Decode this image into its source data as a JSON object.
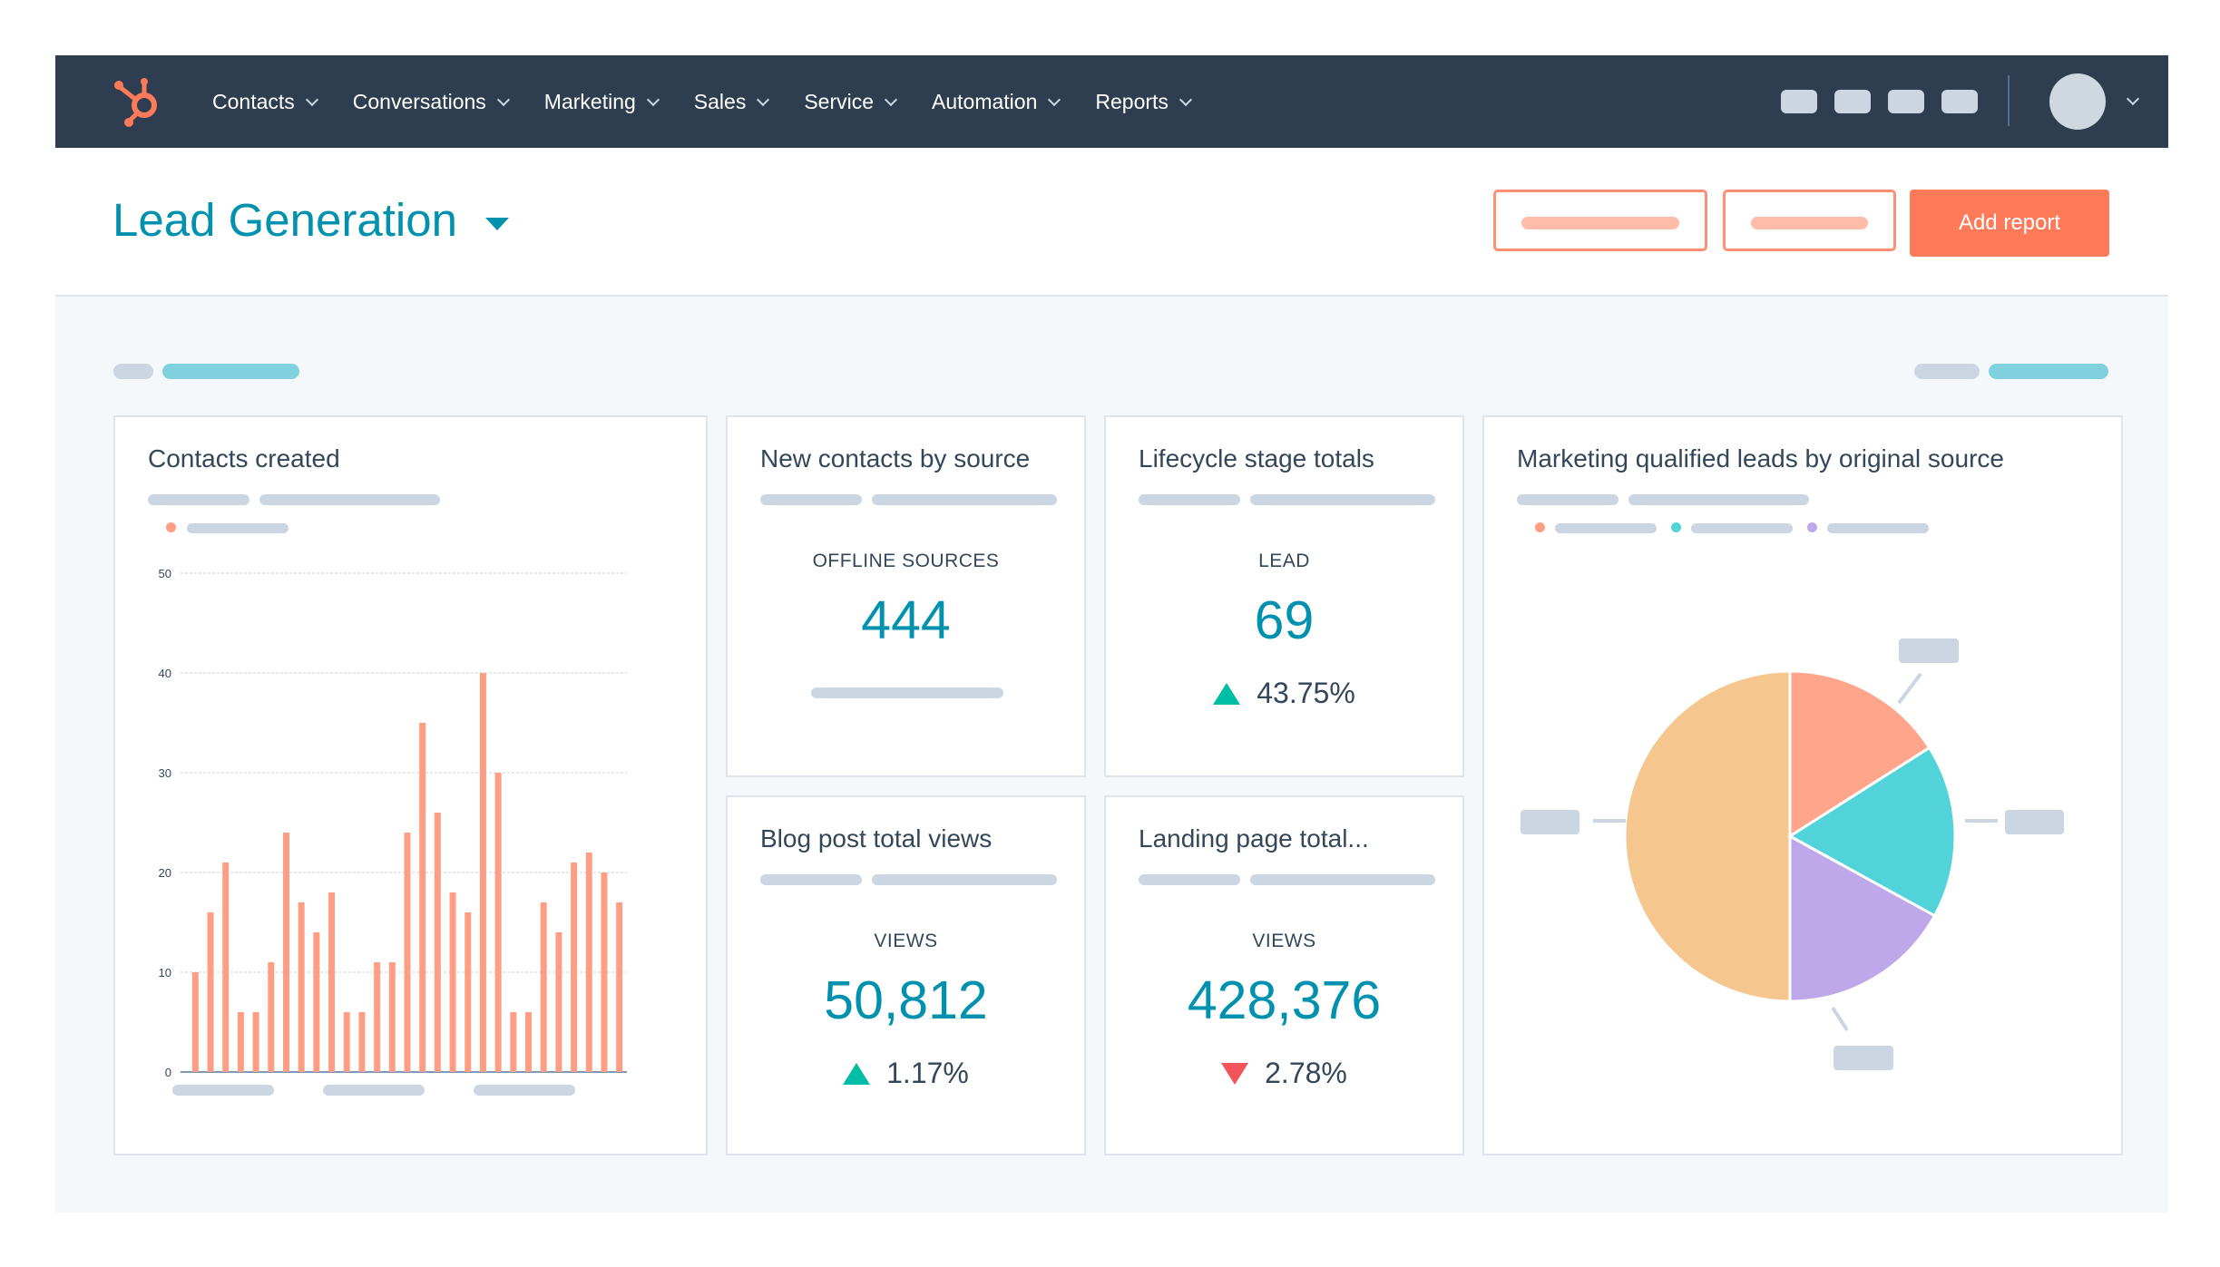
{
  "nav": {
    "menu": [
      {
        "label": "Contacts"
      },
      {
        "label": "Conversations"
      },
      {
        "label": "Marketing"
      },
      {
        "label": "Sales"
      },
      {
        "label": "Service"
      },
      {
        "label": "Automation"
      },
      {
        "label": "Reports"
      }
    ],
    "brand_color": "#ff7a59",
    "icons": [
      "hubspot-sprocket-icon",
      "chevron-down-icon",
      "avatar"
    ]
  },
  "header": {
    "title": "Lead Generation",
    "add_report_label": "Add report",
    "accent_color": "#0091ae"
  },
  "cards": {
    "contacts_created": {
      "title": "Contacts created"
    },
    "new_contacts": {
      "title": "New contacts by source",
      "label": "OFFLINE SOURCES",
      "value": "444"
    },
    "lifecycle": {
      "title": "Lifecycle stage totals",
      "label": "LEAD",
      "value": "69",
      "change": "43.75%",
      "direction": "up"
    },
    "blog": {
      "title": "Blog post total views",
      "label": "VIEWS",
      "value": "50,812",
      "change": "1.17%",
      "direction": "up"
    },
    "landing": {
      "title": "Landing page total...",
      "label": "VIEWS",
      "value": "428,376",
      "change": "2.78%",
      "direction": "down"
    },
    "mql": {
      "title": "Marketing qualified leads by original source"
    }
  },
  "status_colors": {
    "up": "#00bda5",
    "down": "#f2545b"
  },
  "chart_data": [
    {
      "type": "bar",
      "title": "Contacts created",
      "ylim": [
        0,
        50
      ],
      "yticks": [
        "0",
        "10",
        "20",
        "30",
        "40",
        "50"
      ],
      "grid": true,
      "color": "#ff9e85",
      "values": [
        10,
        16,
        21,
        6,
        6,
        11,
        24,
        17,
        14,
        18,
        6,
        6,
        11,
        11,
        24,
        35,
        26,
        18,
        16,
        40,
        30,
        6,
        6,
        17,
        14,
        21,
        22,
        20,
        17
      ]
    },
    {
      "type": "pie",
      "title": "Marketing qualified leads by original source",
      "values": [
        50,
        16,
        17,
        17
      ],
      "colors": [
        "#f5c78e",
        "#ffa58c",
        "#51d3d9",
        "#bea8ea"
      ],
      "legend": "top-left"
    }
  ]
}
